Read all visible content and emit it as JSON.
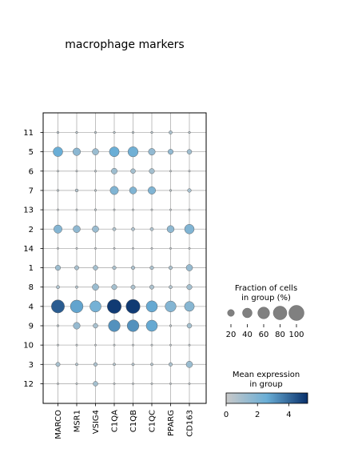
{
  "chart_data": {
    "type": "dotplot",
    "title": "macrophage markers",
    "genes": [
      "MARCO",
      "MSR1",
      "VSIG4",
      "C1QA",
      "C1QB",
      "C1QC",
      "PPARG",
      "CD163"
    ],
    "groups": [
      "11",
      "5",
      "6",
      "7",
      "13",
      "2",
      "14",
      "1",
      "8",
      "4",
      "9",
      "10",
      "3",
      "12"
    ],
    "fraction_pct": [
      [
        2,
        2,
        2,
        2,
        2,
        2,
        5,
        2
      ],
      [
        40,
        25,
        18,
        42,
        45,
        20,
        12,
        10
      ],
      [
        1,
        1,
        2,
        15,
        10,
        12,
        1,
        1
      ],
      [
        2,
        4,
        2,
        30,
        22,
        25,
        2,
        6
      ],
      [
        1,
        1,
        2,
        1,
        1,
        1,
        1,
        1
      ],
      [
        30,
        22,
        18,
        5,
        5,
        5,
        22,
        40
      ],
      [
        1,
        1,
        1,
        1,
        1,
        1,
        1,
        1
      ],
      [
        12,
        8,
        10,
        6,
        6,
        6,
        6,
        18
      ],
      [
        5,
        3,
        18,
        12,
        8,
        8,
        5,
        12
      ],
      [
        75,
        70,
        55,
        85,
        85,
        55,
        52,
        42
      ],
      [
        2,
        20,
        10,
        60,
        60,
        55,
        2,
        10
      ],
      [
        1,
        1,
        1,
        1,
        1,
        1,
        1,
        1
      ],
      [
        8,
        3,
        6,
        3,
        3,
        3,
        6,
        18
      ],
      [
        1,
        1,
        10,
        1,
        1,
        1,
        1,
        1
      ]
    ],
    "mean_expr": [
      [
        0.5,
        0.5,
        0.5,
        0.5,
        0.5,
        0.5,
        0.8,
        0.5
      ],
      [
        2.6,
        1.7,
        1.3,
        2.6,
        2.4,
        1.5,
        1.5,
        1.1
      ],
      [
        0.3,
        0.3,
        0.4,
        1.2,
        1.0,
        1.0,
        0.3,
        0.3
      ],
      [
        0.4,
        0.6,
        0.4,
        2.0,
        2.0,
        2.0,
        0.4,
        0.9
      ],
      [
        0.3,
        0.3,
        0.4,
        0.3,
        0.3,
        0.3,
        0.3,
        0.3
      ],
      [
        1.9,
        1.6,
        1.3,
        0.7,
        0.7,
        0.7,
        1.6,
        2.0
      ],
      [
        0.3,
        0.3,
        0.3,
        0.3,
        0.3,
        0.3,
        0.3,
        0.3
      ],
      [
        1.2,
        0.9,
        1.0,
        0.8,
        0.8,
        0.8,
        0.8,
        1.4
      ],
      [
        0.7,
        0.6,
        1.3,
        1.0,
        0.8,
        0.8,
        0.6,
        1.0
      ],
      [
        4.3,
        2.8,
        2.3,
        5.0,
        5.0,
        2.7,
        1.9,
        1.8
      ],
      [
        0.4,
        1.4,
        0.9,
        3.2,
        3.2,
        2.7,
        0.3,
        1.0
      ],
      [
        0.3,
        0.3,
        0.3,
        0.3,
        0.3,
        0.3,
        0.3,
        0.3
      ],
      [
        0.9,
        0.6,
        0.8,
        0.6,
        0.6,
        0.6,
        0.8,
        1.3
      ],
      [
        0.3,
        0.3,
        1.0,
        0.3,
        0.3,
        0.3,
        0.3,
        0.3
      ]
    ],
    "size_legend": {
      "title_line1": "Fraction of cells",
      "title_line2": "in group (%)",
      "values": [
        20,
        40,
        60,
        80,
        100
      ],
      "labels": [
        "20",
        "40",
        "60",
        "80",
        "100"
      ]
    },
    "color_legend": {
      "title_line1": "Mean expression",
      "title_line2": "in group",
      "range": [
        0,
        5.2
      ],
      "ticks": [
        0,
        2,
        4
      ],
      "tick_labels": [
        "0",
        "2",
        "4"
      ],
      "colors": [
        "#c9c9c9",
        "#6aaed6",
        "#08306b"
      ]
    },
    "grid": true
  }
}
